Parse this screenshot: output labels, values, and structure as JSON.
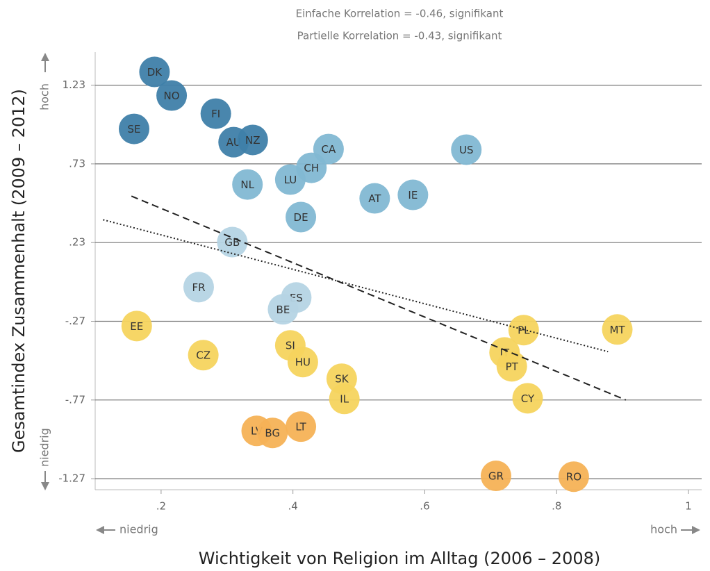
{
  "chart_data": {
    "type": "scatter",
    "subtitles": [
      "Einfache Korrelation = -0.46, signifikant",
      "Partielle Korrelation = -0.43, signifikant"
    ],
    "x_label": "Wichtigkeit von Religion im Alltag (2006 – 2008)",
    "y_label": "Gesamtindex Zusammenhalt (2009 – 2012)",
    "x_low": "niedrig",
    "x_high": "hoch",
    "y_low": "niedrig",
    "y_high": "hoch",
    "xlim": [
      0.1,
      1.02
    ],
    "ylim": [
      -1.34,
      1.44
    ],
    "xticks": [
      {
        "value": 0.2,
        "label": ".2"
      },
      {
        "value": 0.4,
        "label": ".4"
      },
      {
        "value": 0.6,
        "label": ".6"
      },
      {
        "value": 0.8,
        "label": ".8"
      },
      1
    ],
    "yticks": [
      {
        "value": 1.23,
        "label": "1.23"
      },
      {
        "value": 0.73,
        "label": ".73"
      },
      {
        "value": 0.23,
        "label": ".23"
      },
      {
        "value": -0.27,
        "label": "-.27"
      },
      {
        "value": -0.77,
        "label": "-.77"
      },
      {
        "value": -1.27,
        "label": "-1.27"
      }
    ],
    "grid": true,
    "labels": [
      "DK",
      "NO",
      "SE",
      "FI",
      "AU",
      "NZ",
      "CA",
      "US",
      "CH",
      "LU",
      "NL",
      "AT",
      "IE",
      "DE",
      "GB",
      "FR",
      "ES",
      "BE",
      "EE",
      "PL",
      "MT",
      "SI",
      "CZ",
      "IT",
      "PT",
      "HU",
      "SK",
      "IL",
      "CY",
      "LV",
      "BG",
      "LT",
      "GR",
      "RO"
    ],
    "x": [
      0.19,
      0.216,
      0.159,
      0.283,
      0.31,
      0.339,
      0.454,
      0.663,
      0.428,
      0.396,
      0.331,
      0.524,
      0.582,
      0.412,
      0.308,
      0.257,
      0.405,
      0.385,
      0.163,
      0.75,
      0.892,
      0.396,
      0.264,
      0.721,
      0.732,
      0.415,
      0.474,
      0.478,
      0.756,
      0.345,
      0.369,
      0.412,
      0.708,
      0.826
    ],
    "values": [
      1.314,
      1.164,
      0.952,
      1.049,
      0.868,
      0.882,
      0.824,
      0.82,
      0.705,
      0.63,
      0.599,
      0.511,
      0.533,
      0.392,
      0.233,
      -0.053,
      -0.119,
      -0.194,
      -0.3,
      -0.326,
      -0.322,
      -0.423,
      -0.485,
      -0.468,
      -0.556,
      -0.529,
      -0.635,
      -0.763,
      -0.759,
      -0.966,
      -0.979,
      -0.939,
      -1.252,
      -1.257
    ],
    "colors": [
      "#3f7fa9",
      "#3f7fa9",
      "#3f7fa9",
      "#3f7fa9",
      "#3f7fa9",
      "#3f7fa9",
      "#82b8d3",
      "#82b8d3",
      "#82b8d3",
      "#82b8d3",
      "#82b8d3",
      "#82b8d3",
      "#82b8d3",
      "#82b8d3",
      "#b5d4e4",
      "#b5d4e4",
      "#b5d4e4",
      "#b5d4e4",
      "#f5d45e",
      "#f5d45e",
      "#f5d45e",
      "#f5d45e",
      "#f5d45e",
      "#f5d45e",
      "#f5d45e",
      "#f5d45e",
      "#f5d45e",
      "#f5d45e",
      "#f5d45e",
      "#f5b256",
      "#f5b256",
      "#f5b256",
      "#f5b256",
      "#f5b256"
    ],
    "trend_lines": [
      {
        "style": "dashed",
        "x": [
          0.155,
          0.905
        ],
        "y": [
          0.525,
          -0.77
        ]
      },
      {
        "style": "dotted",
        "x": [
          0.112,
          0.878
        ],
        "y": [
          0.375,
          -0.463
        ]
      }
    ]
  }
}
